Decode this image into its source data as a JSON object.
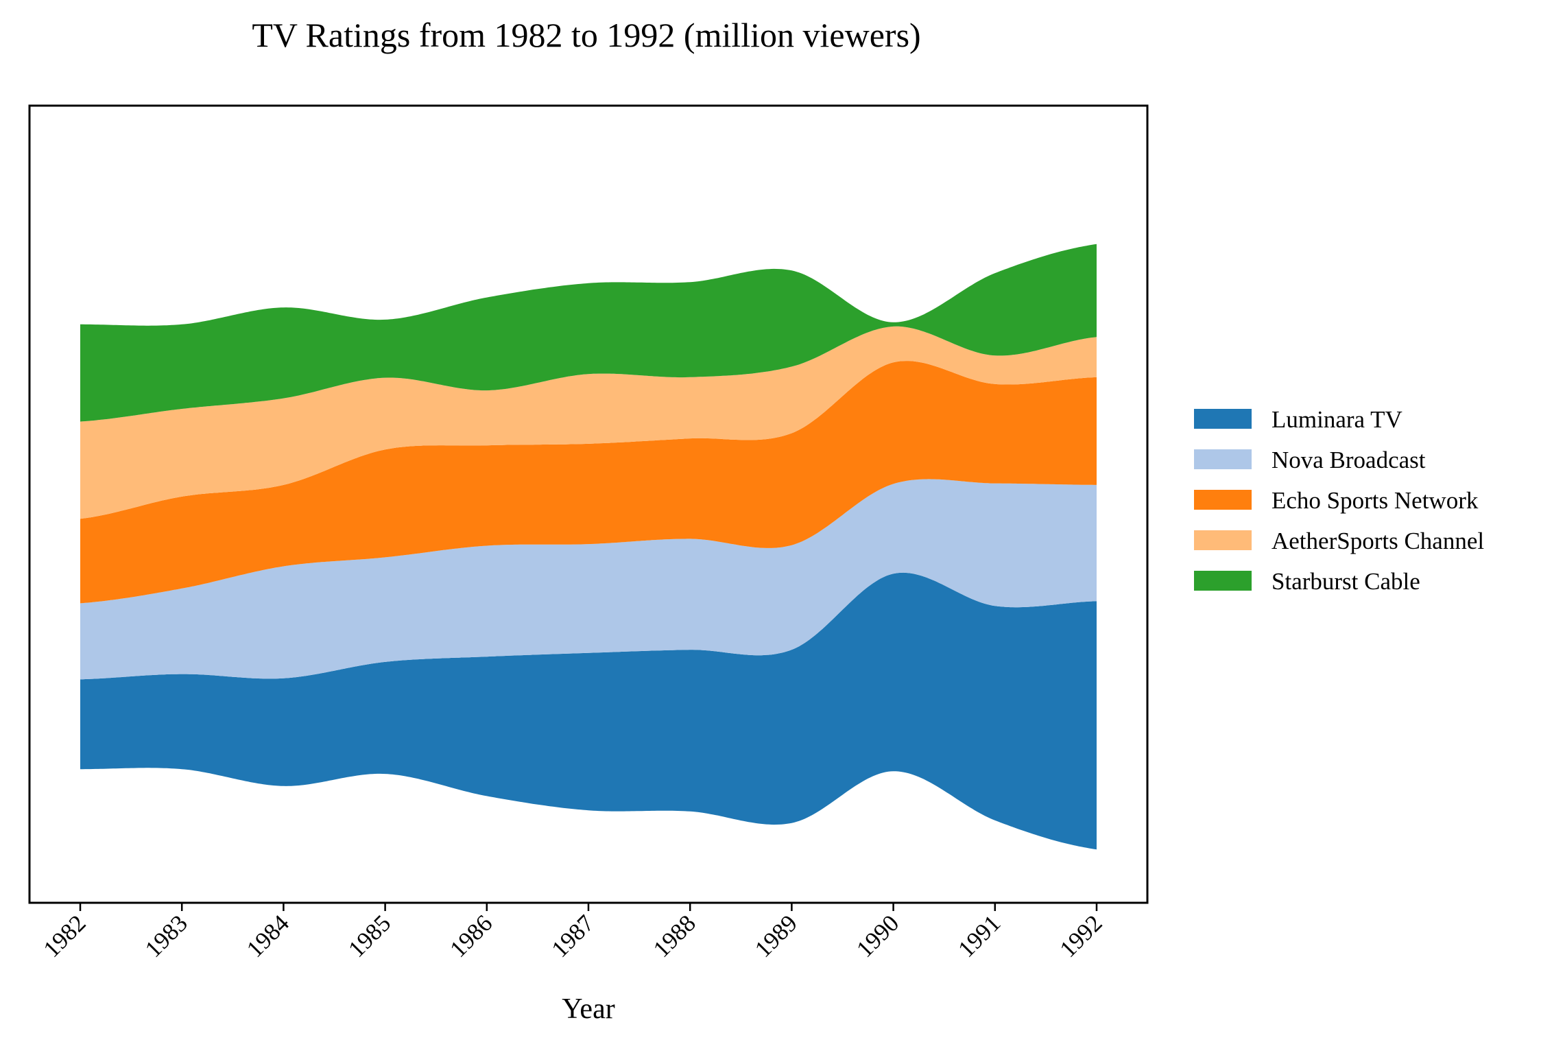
{
  "chart_data": {
    "type": "area",
    "subtype": "streamgraph",
    "title": "TV Ratings from 1982 to 1992 (million viewers)",
    "xlabel": "Year",
    "ylabel": "",
    "x": [
      "1982",
      "1983",
      "1984",
      "1985",
      "1986",
      "1987",
      "1988",
      "1989",
      "1990",
      "1991",
      "1992"
    ],
    "series": [
      {
        "name": "Luminara TV",
        "color": "#1f77b4",
        "values": [
          8.5,
          9.0,
          10.2,
          10.6,
          13.2,
          14.9,
          15.3,
          16.4,
          18.7,
          20.3,
          23.5
        ]
      },
      {
        "name": "Nova Broadcast",
        "color": "#aec7e8",
        "values": [
          7.2,
          8.1,
          10.6,
          9.9,
          10.5,
          10.3,
          10.5,
          9.9,
          8.5,
          11.6,
          11.0
        ]
      },
      {
        "name": "Echo Sports Network",
        "color": "#ff7f0e",
        "values": [
          8.0,
          8.7,
          7.7,
          10.2,
          9.5,
          9.5,
          9.5,
          10.6,
          11.5,
          9.4,
          10.2
        ]
      },
      {
        "name": "AetherSports Channel",
        "color": "#ffbb78",
        "values": [
          9.2,
          8.3,
          8.2,
          6.8,
          5.2,
          6.6,
          5.8,
          6.3,
          3.4,
          2.7,
          3.8
        ]
      },
      {
        "name": "Starburst Cable",
        "color": "#2ca02c",
        "values": [
          9.2,
          8.0,
          8.6,
          5.5,
          8.8,
          8.6,
          9.0,
          9.1,
          0.4,
          7.8,
          8.8
        ]
      }
    ],
    "baseline": "symmetric",
    "legend": "right",
    "grid": false
  }
}
